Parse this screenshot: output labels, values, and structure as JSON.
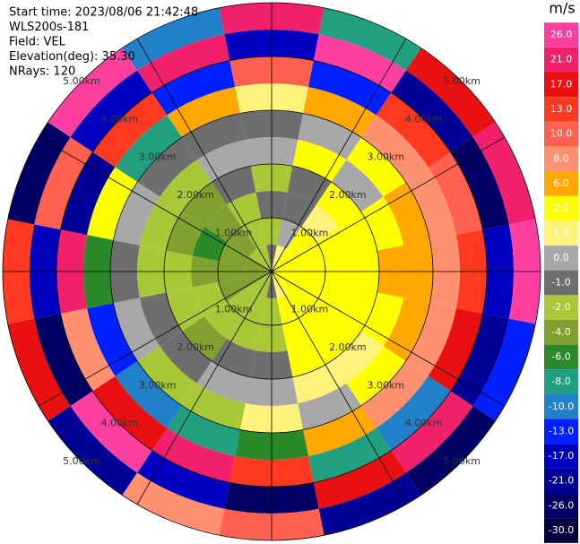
{
  "chart_data": {
    "type": "ppi",
    "info": [
      "Start time: 2023/08/06 21:42:48",
      "WLS200s-181",
      "Field: VEL",
      "Elevation(deg): 35.30",
      "NRays: 120"
    ],
    "colorbar_title": "m/s",
    "cticks": [
      {
        "value": 26,
        "label": "26.0"
      },
      {
        "value": 21,
        "label": "21.0"
      },
      {
        "value": 17,
        "label": "17.0"
      },
      {
        "value": 13,
        "label": "13.0"
      },
      {
        "value": 10,
        "label": "10.0"
      },
      {
        "value": 8,
        "label": "8.0"
      },
      {
        "value": 6,
        "label": "6.0"
      },
      {
        "value": 2,
        "label": "2.0"
      },
      {
        "value": 1,
        "label": "1.0"
      },
      {
        "value": 0,
        "label": "0.0"
      },
      {
        "value": -1,
        "label": "-1.0"
      },
      {
        "value": -2,
        "label": "-2.0"
      },
      {
        "value": -4,
        "label": "-4.0"
      },
      {
        "value": -6,
        "label": "-6.0"
      },
      {
        "value": -8,
        "label": "-8.0"
      },
      {
        "value": -10,
        "label": "-10.0"
      },
      {
        "value": -13,
        "label": "-13.0"
      },
      {
        "value": -17,
        "label": "-17.0"
      },
      {
        "value": -21,
        "label": "-21.0"
      },
      {
        "value": -26,
        "label": "-26.0"
      },
      {
        "value": -30,
        "label": "-30.0"
      }
    ],
    "colors": [
      "#ff3fa0",
      "#f0206a",
      "#e81010",
      "#ff3820",
      "#ff6050",
      "#ff9070",
      "#ffa800",
      "#ffff00",
      "#fff27a",
      "#a8a8a8",
      "#6e6e6e",
      "#a8c838",
      "#80a030",
      "#2a8a2a",
      "#20a080",
      "#2080c8",
      "#0020ff",
      "#0000c0",
      "#000096",
      "#000064",
      "#000040"
    ],
    "rlim": [
      0,
      5
    ],
    "rticks": [
      {
        "value": 1,
        "label": "1.00km"
      },
      {
        "value": 2,
        "label": "2.00km"
      },
      {
        "value": 3,
        "label": "3.00km"
      },
      {
        "value": 4,
        "label": "4.00km"
      },
      {
        "value": 5,
        "label": "5.00km"
      }
    ],
    "azimuths": [
      0,
      22.5,
      45,
      67.5,
      90,
      112.5,
      135,
      157.5,
      180,
      202.5,
      225,
      247.5,
      270,
      292.5,
      315,
      337.5
    ],
    "ranges": [
      0.25,
      0.75,
      1.25,
      1.75,
      2.25,
      2.75,
      3.25,
      3.75,
      4.25,
      4.75
    ],
    "values": [
      [
        -1,
        -2,
        -1,
        -2,
        0,
        -1,
        1,
        10,
        -17,
        21
      ],
      [
        1,
        0,
        -1,
        -1,
        2,
        0,
        6,
        -13,
        26,
        -8
      ],
      [
        2,
        2,
        1,
        2,
        0,
        2,
        8,
        13,
        -21,
        17
      ],
      [
        2,
        2,
        2,
        2,
        2,
        6,
        8,
        10,
        -26,
        21
      ],
      [
        2,
        2,
        2,
        2,
        6,
        6,
        8,
        13,
        -17,
        26
      ],
      [
        2,
        2,
        2,
        2,
        2,
        6,
        8,
        17,
        -21,
        -13
      ],
      [
        2,
        2,
        2,
        2,
        1,
        2,
        8,
        -10,
        21,
        -26
      ],
      [
        1,
        2,
        2,
        2,
        1,
        0,
        6,
        -8,
        17,
        -21
      ],
      [
        -1,
        -2,
        -2,
        -1,
        0,
        1,
        -6,
        13,
        -26,
        10
      ],
      [
        -2,
        -2,
        -2,
        -1,
        0,
        -2,
        -8,
        21,
        -17,
        8
      ],
      [
        -2,
        -2,
        -2,
        -4,
        -1,
        -2,
        -10,
        17,
        26,
        -21
      ],
      [
        -4,
        -4,
        -2,
        -2,
        -1,
        0,
        -13,
        8,
        -26,
        17
      ],
      [
        -4,
        -4,
        -4,
        -2,
        -2,
        -1,
        -6,
        21,
        -17,
        13
      ],
      [
        -4,
        -4,
        -6,
        -4,
        -2,
        0,
        2,
        -21,
        10,
        -26
      ],
      [
        -2,
        -4,
        -4,
        -4,
        -2,
        -1,
        -8,
        13,
        -17,
        26
      ],
      [
        -2,
        -2,
        -2,
        -1,
        0,
        -1,
        6,
        -13,
        21,
        -10
      ]
    ]
  }
}
